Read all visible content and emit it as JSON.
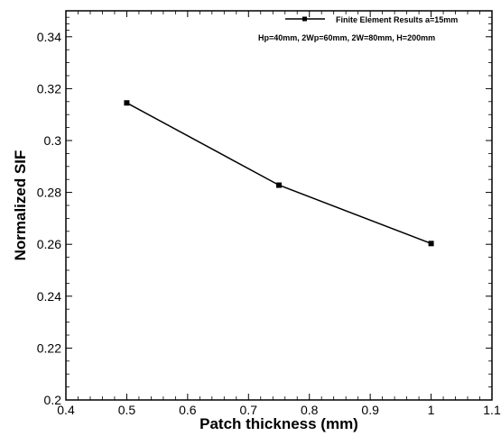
{
  "chart_data": {
    "type": "line",
    "xlabel": "Patch thickness (mm)",
    "ylabel": "Normalized SIF",
    "xlim": [
      0.4,
      1.1
    ],
    "ylim": [
      0.2,
      0.35
    ],
    "xticks": [
      0.4,
      0.5,
      0.6,
      0.7,
      0.8,
      0.9,
      1,
      1.1
    ],
    "xtick_labels": [
      "0.4",
      "0.5",
      "0.6",
      "0.7",
      "0.8",
      "0.9",
      "1",
      "1.1"
    ],
    "yticks": [
      0.2,
      0.22,
      0.24,
      0.26,
      0.28,
      0.3,
      0.32,
      0.34
    ],
    "ytick_labels": [
      "0.2",
      "0.22",
      "0.24",
      "0.26",
      "0.28",
      "0.3",
      "0.32",
      "0.34"
    ],
    "grid": false,
    "legend_position": "top-right",
    "series": [
      {
        "name": "Finite Element Results a=15mm",
        "x": [
          0.5,
          0.75,
          1.0
        ],
        "y": [
          0.3145,
          0.2828,
          0.2603
        ],
        "color": "#000000",
        "marker": "square"
      }
    ],
    "annotation": "Hp=40mm, 2Wp=60mm, 2W=80mm, H=200mm"
  }
}
